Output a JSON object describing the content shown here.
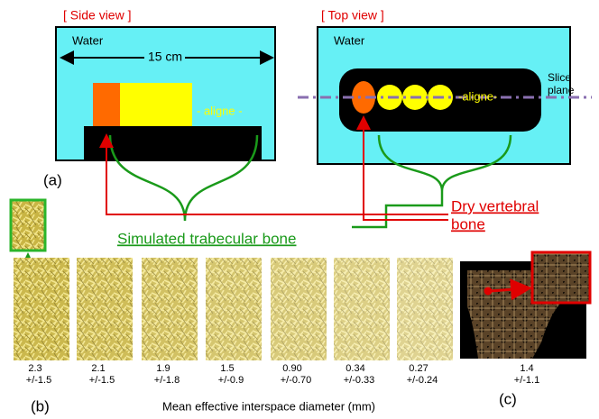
{
  "panel_a": {
    "side_view": {
      "title": "[ Side view ]",
      "water": "Water",
      "width": "15 cm",
      "aligne": "- aligne -"
    },
    "top_view": {
      "title": "[ Top view ]",
      "water": "Water",
      "aligne": "-aligne-",
      "slice_plane": [
        "Slice",
        "plane"
      ]
    },
    "label": "(a)"
  },
  "annotations": {
    "dry_vertebral_bone": [
      "Dry vertebral",
      "bone"
    ],
    "simulated_trabecular_bone": "Simulated trabecular bone"
  },
  "panel_b": {
    "label": "(b)",
    "samples": [
      {
        "mean": "2.3",
        "sd": "+/-1.5"
      },
      {
        "mean": "2.1",
        "sd": "+/-1.5"
      },
      {
        "mean": "1.9",
        "sd": "+/-1.8"
      },
      {
        "mean": "1.5",
        "sd": "+/-0.9"
      },
      {
        "mean": "0.90",
        "sd": "+/-0.70"
      },
      {
        "mean": "0.34",
        "sd": "+/-0.33"
      },
      {
        "mean": "0.27",
        "sd": "+/-0.24"
      }
    ]
  },
  "panel_c": {
    "label": "(c)",
    "sample": {
      "mean": "1.4",
      "sd": "+/-1.1"
    }
  },
  "caption": "Mean effective interspace diameter (mm)"
}
